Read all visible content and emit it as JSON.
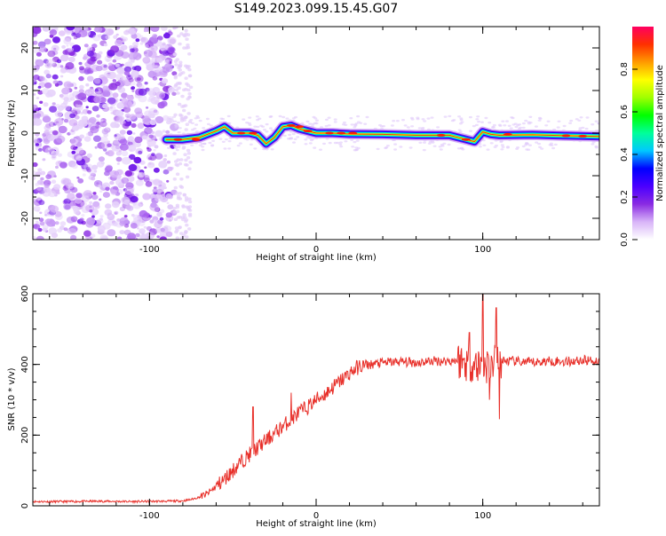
{
  "figure_title": "S149.2023.099.15.45.G07",
  "chart_data": [
    {
      "type": "heatmap",
      "title": "",
      "xlabel": "Height of straight line (km)",
      "ylabel": "Frequency (Hz)",
      "xlim": [
        -170,
        170
      ],
      "ylim": [
        -25,
        25
      ],
      "xticks": [
        -100,
        0,
        100
      ],
      "yticks": [
        -20,
        -10,
        0,
        10,
        20
      ],
      "colorbar": {
        "label": "Normalized spectral amplitude",
        "range": [
          0,
          1
        ],
        "ticks": [
          0.0,
          0.2,
          0.4,
          0.6,
          0.8
        ],
        "colors": [
          "#ffffff",
          "#d8b4f8",
          "#8a2be2",
          "#4b00ff",
          "#0000ff",
          "#00c8ff",
          "#00ff9a",
          "#00ff00",
          "#a0ff00",
          "#ffff00",
          "#ff9a00",
          "#ff3000",
          "#ff0060"
        ]
      },
      "ridge_x": [
        -90,
        -80,
        -70,
        -60,
        -55,
        -50,
        -45,
        -40,
        -35,
        -30,
        -25,
        -20,
        -15,
        -10,
        -5,
        0,
        10,
        20,
        40,
        60,
        80,
        85,
        90,
        95,
        100,
        105,
        110,
        130,
        150,
        170
      ],
      "ridge_y": [
        -1.5,
        -1.5,
        -1.0,
        0.5,
        1.5,
        0.0,
        0.0,
        0.0,
        -0.5,
        -2.5,
        -1.0,
        1.5,
        1.8,
        1.0,
        0.5,
        0.0,
        0.0,
        -0.2,
        -0.3,
        -0.5,
        -0.5,
        -1.0,
        -1.5,
        -2.0,
        0.3,
        -0.3,
        -0.5,
        -0.4,
        -0.6,
        -0.8
      ]
    },
    {
      "type": "line",
      "title": "",
      "xlabel": "Height of straight line (km)",
      "ylabel": "SNR (10 * v/v)",
      "xlim": [
        -170,
        170
      ],
      "ylim": [
        0,
        600
      ],
      "xticks": [
        -100,
        0,
        100
      ],
      "yticks": [
        0,
        200,
        400,
        600
      ],
      "series": [
        {
          "color": "#e8302a",
          "x": [
            -170,
            -150,
            -130,
            -110,
            -90,
            -80,
            -75,
            -70,
            -65,
            -60,
            -55,
            -50,
            -45,
            -40,
            -35,
            -30,
            -25,
            -20,
            -15,
            -10,
            -5,
            0,
            5,
            10,
            15,
            20,
            25,
            30,
            40,
            50,
            60,
            70,
            80,
            85,
            90,
            95,
            100,
            105,
            110,
            115,
            120,
            130,
            140,
            150,
            160,
            170
          ],
          "y": [
            12,
            12,
            13,
            12,
            13,
            14,
            18,
            25,
            35,
            55,
            75,
            100,
            125,
            145,
            165,
            185,
            205,
            225,
            245,
            265,
            280,
            300,
            315,
            335,
            355,
            375,
            392,
            398,
            405,
            408,
            405,
            410,
            410,
            412,
            405,
            400,
            395,
            400,
            410,
            410,
            408,
            405,
            410,
            408,
            412,
            410
          ],
          "spikes": [
            {
              "x": -38,
              "y": 280
            },
            {
              "x": -15,
              "y": 320
            },
            {
              "x": 92,
              "y": 490
            },
            {
              "x": 100,
              "y": 600
            },
            {
              "x": 104,
              "y": 300
            },
            {
              "x": 108,
              "y": 560
            },
            {
              "x": 110,
              "y": 245
            }
          ]
        }
      ]
    }
  ]
}
